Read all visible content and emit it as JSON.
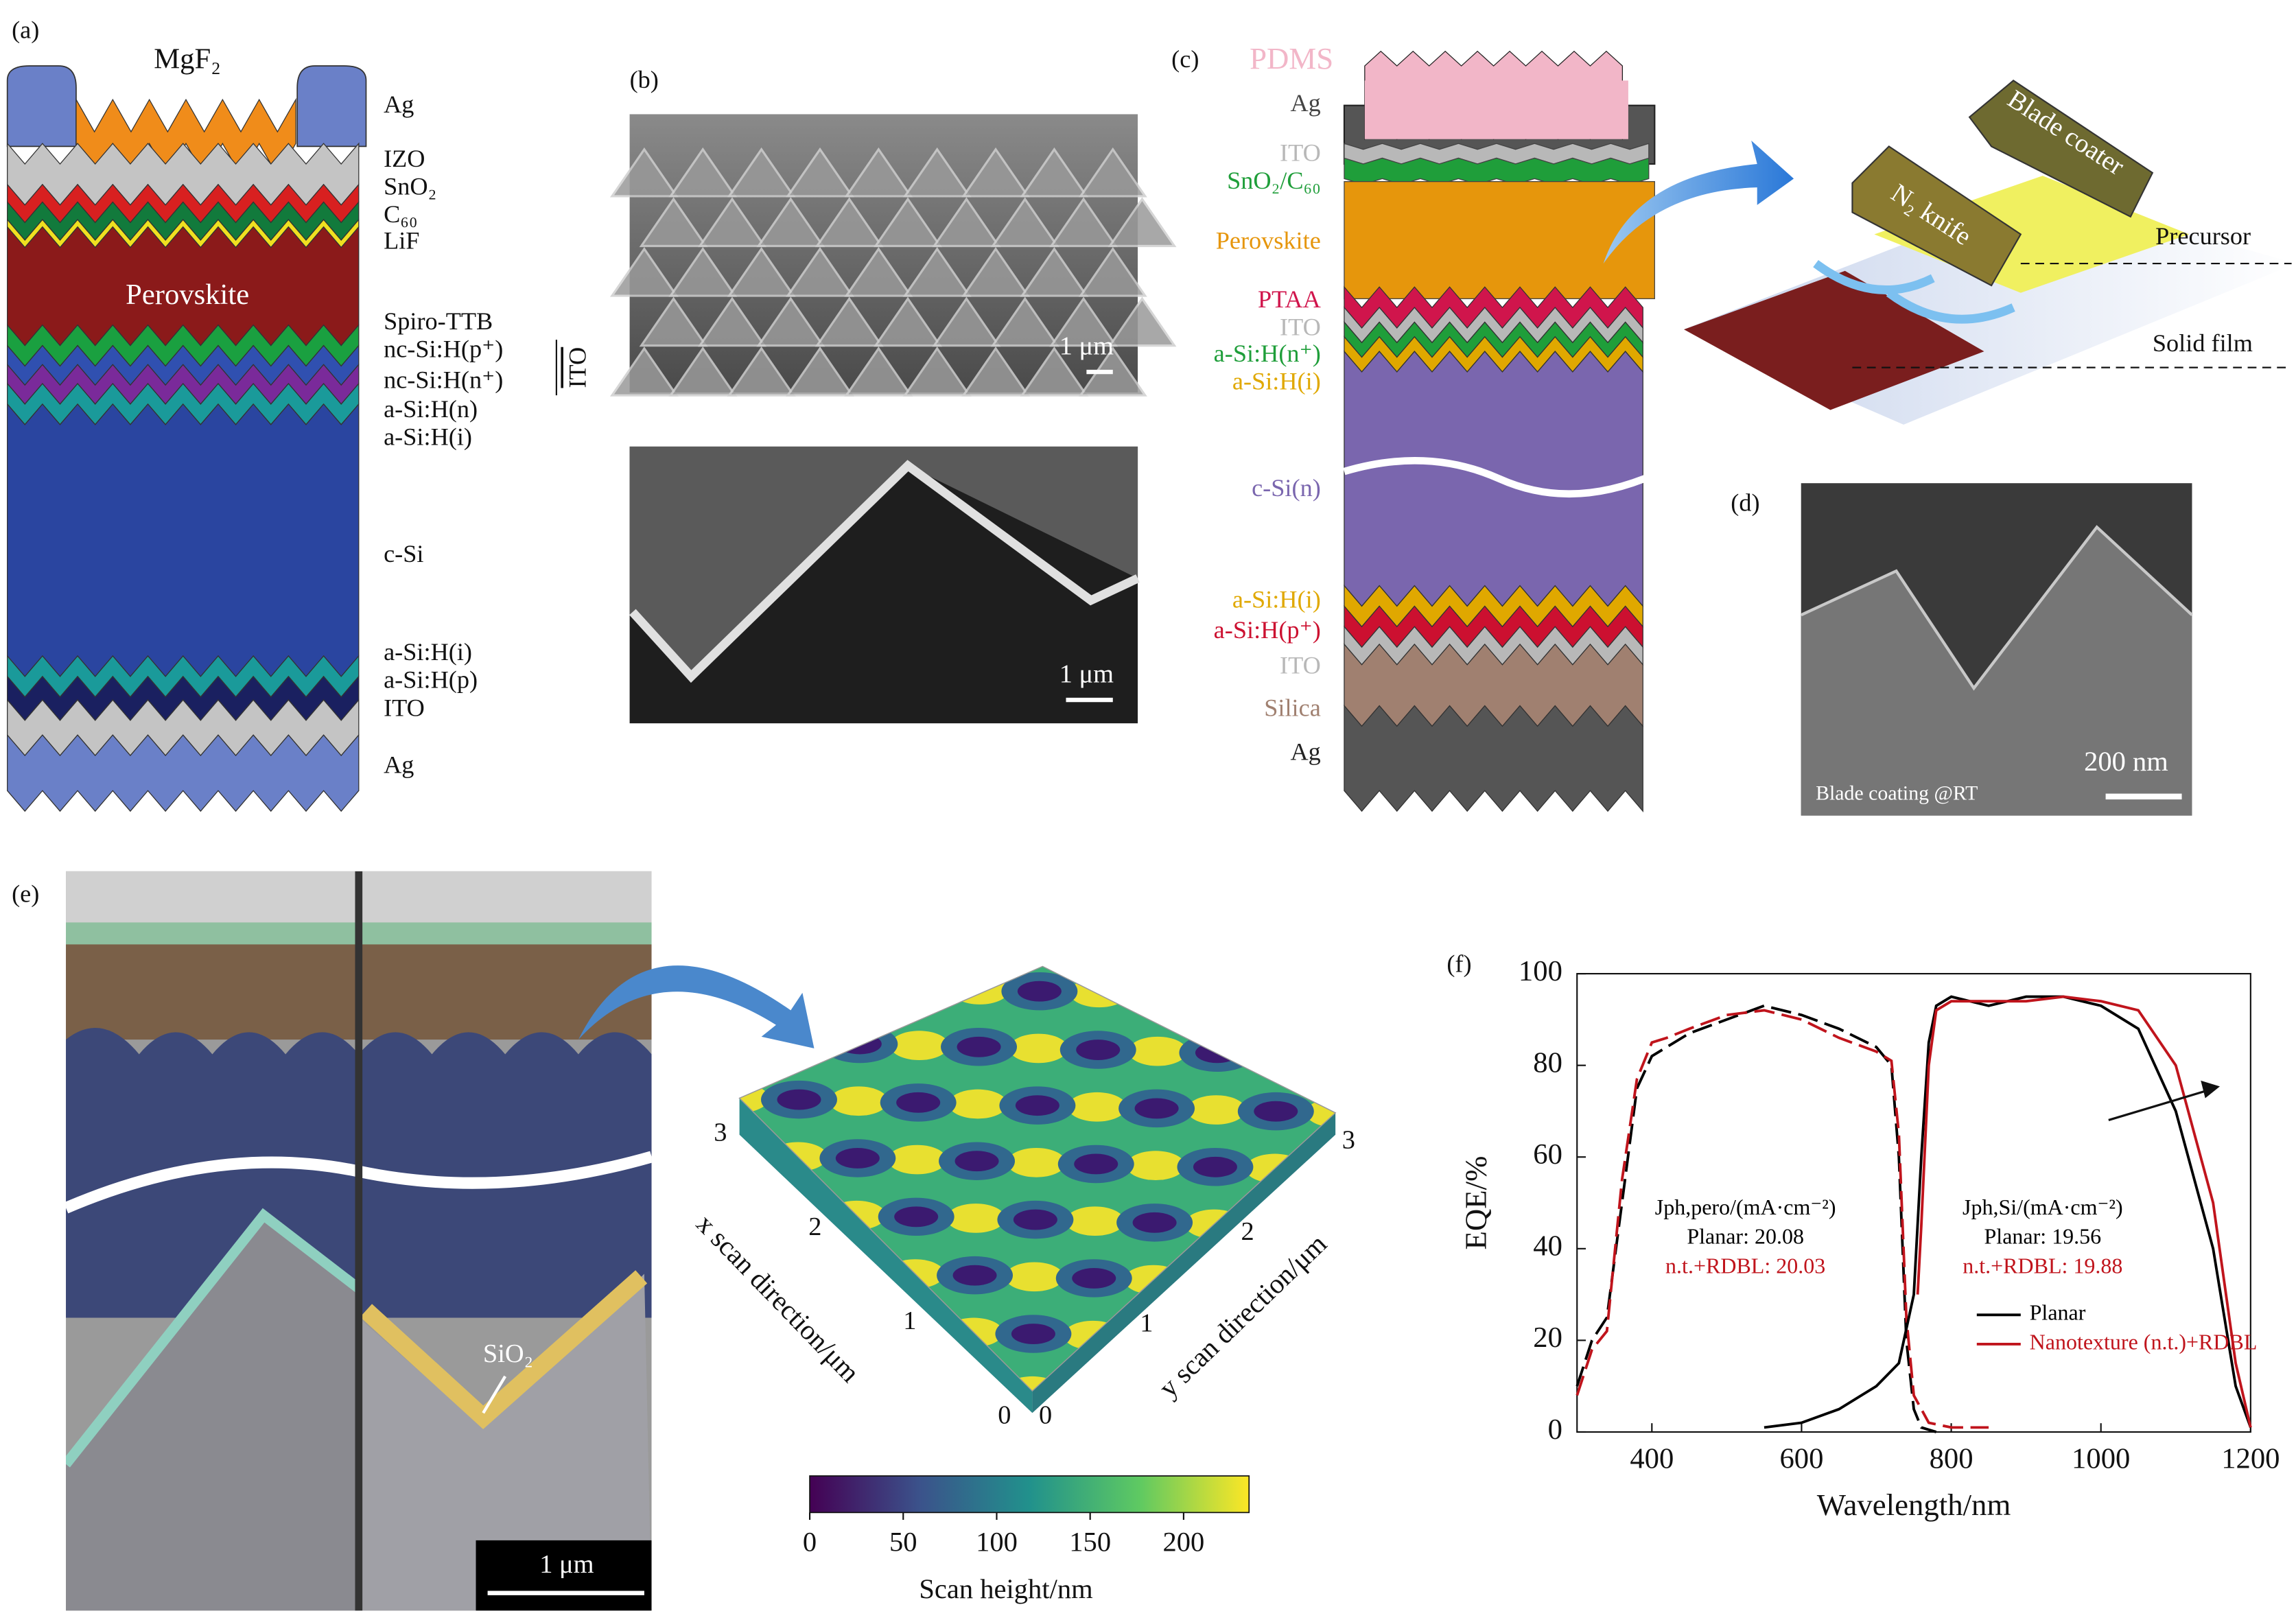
{
  "panels": {
    "a": {
      "label": "(a)",
      "layers": [
        "MgF₂",
        "Ag",
        "IZO",
        "SnO₂",
        "C₆₀",
        "LiF",
        "Perovskite",
        "Spiro-TTB",
        "nc-Si:H(p⁺)",
        "nc-Si:H(n⁺)",
        "a-Si:H(n)",
        "a-Si:H(i)",
        "c-Si",
        "a-Si:H(i)",
        "a-Si:H(p)",
        "ITO",
        "Ag"
      ],
      "bracket": "ITO"
    },
    "b": {
      "label": "(b)",
      "scale_bars": [
        "1 μm",
        "1 μm"
      ]
    },
    "c": {
      "label": "(c)",
      "layers": [
        {
          "name": "PDMS",
          "color": "#f2b6c8"
        },
        {
          "name": "Ag",
          "color": "#555555"
        },
        {
          "name": "ITO",
          "color": "#b8b8b8"
        },
        {
          "name": "SnO₂/C₆₀",
          "color": "#1f9e3a"
        },
        {
          "name": "Perovskite",
          "color": "#e6960c"
        },
        {
          "name": "PTAA",
          "color": "#d0154c"
        },
        {
          "name": "ITO",
          "color": "#b8b8b8"
        },
        {
          "name": "a-Si:H(n⁺)",
          "color": "#1f9e3a"
        },
        {
          "name": "a-Si:H(i)",
          "color": "#e0a800"
        },
        {
          "name": "c-Si(n)",
          "color": "#7a66ae"
        },
        {
          "name": "a-Si:H(i)",
          "color": "#e0a800"
        },
        {
          "name": "a-Si:H(p⁺)",
          "color": "#cc1030"
        },
        {
          "name": "ITO",
          "color": "#b8b8b8"
        },
        {
          "name": "Silica",
          "color": "#a08070"
        },
        {
          "name": "Ag",
          "color": "#222222"
        }
      ],
      "coater": [
        "Blade coater",
        "N₂ knife",
        "Precursor",
        "Solid film"
      ]
    },
    "d": {
      "label": "(d)",
      "scale_bar": "200 nm",
      "caption": "Blade coating @RT"
    },
    "e": {
      "label": "(e)",
      "scale_bar": "1 μm",
      "annotation": "SiO₂",
      "x_axis_label": "x scan direction/μm",
      "y_axis_label": "y scan direction/μm",
      "xticks": [
        0,
        1,
        2,
        3
      ],
      "yticks": [
        0,
        1,
        2,
        3
      ],
      "colorbar": {
        "label": "Scan height/nm",
        "lim": [
          0,
          235
        ],
        "ticks": [
          0,
          50,
          100,
          150,
          200
        ]
      }
    }
  },
  "chart_data": {
    "type": "line",
    "panel_label": "(f)",
    "xlabel": "Wavelength/nm",
    "ylabel": "EQE/%",
    "xlim": [
      300,
      1200
    ],
    "ylim": [
      0,
      100
    ],
    "xticks": [
      400,
      600,
      800,
      1000,
      1200
    ],
    "yticks": [
      0,
      20,
      40,
      60,
      80,
      100
    ],
    "series": [
      {
        "color": "#000000",
        "dash": true,
        "x": [
          300,
          320,
          340,
          360,
          380,
          400,
          420,
          450,
          500,
          550,
          600,
          650,
          700,
          720,
          730,
          740,
          750,
          760,
          780
        ],
        "values": [
          10,
          20,
          25,
          50,
          75,
          82,
          84,
          87,
          90,
          93,
          91,
          88,
          84,
          80,
          60,
          20,
          5,
          1,
          0
        ]
      },
      {
        "color": "#c0141c",
        "dash": true,
        "x": [
          300,
          320,
          340,
          360,
          380,
          400,
          420,
          450,
          500,
          550,
          600,
          650,
          700,
          720,
          730,
          740,
          750,
          770,
          800,
          850
        ],
        "values": [
          8,
          18,
          22,
          55,
          77,
          85,
          86,
          88,
          91,
          92,
          90,
          86,
          83,
          81,
          65,
          25,
          8,
          2,
          1,
          1
        ]
      },
      {
        "name": "Planar",
        "color": "#000000",
        "dash": false,
        "x": [
          550,
          600,
          650,
          700,
          730,
          750,
          760,
          770,
          780,
          800,
          850,
          900,
          950,
          1000,
          1050,
          1100,
          1150,
          1180,
          1200
        ],
        "values": [
          1,
          2,
          5,
          10,
          15,
          30,
          60,
          85,
          93,
          95,
          93,
          95,
          95,
          93,
          88,
          70,
          40,
          10,
          1
        ]
      },
      {
        "name": "Nanotexture (n.t.)+RDBL",
        "color": "#c0141c",
        "dash": false,
        "x": [
          755,
          760,
          770,
          780,
          800,
          850,
          900,
          950,
          1000,
          1050,
          1100,
          1150,
          1180,
          1200
        ],
        "values": [
          30,
          45,
          80,
          92,
          94,
          94,
          94,
          95,
          94,
          92,
          80,
          50,
          15,
          1
        ]
      }
    ],
    "annotations": [
      {
        "text": "Jph,pero/(mA·cm⁻²)",
        "color": "#000000"
      },
      {
        "text": "Planar: 20.08",
        "color": "#000000"
      },
      {
        "text": "n.t.+RDBL: 20.03",
        "color": "#c0141c"
      },
      {
        "text": "Jph,Si/(mA·cm⁻²)",
        "color": "#000000"
      },
      {
        "text": "Planar: 19.56",
        "color": "#000000"
      },
      {
        "text": "n.t.+RDBL: 19.88",
        "color": "#c0141c"
      }
    ]
  }
}
